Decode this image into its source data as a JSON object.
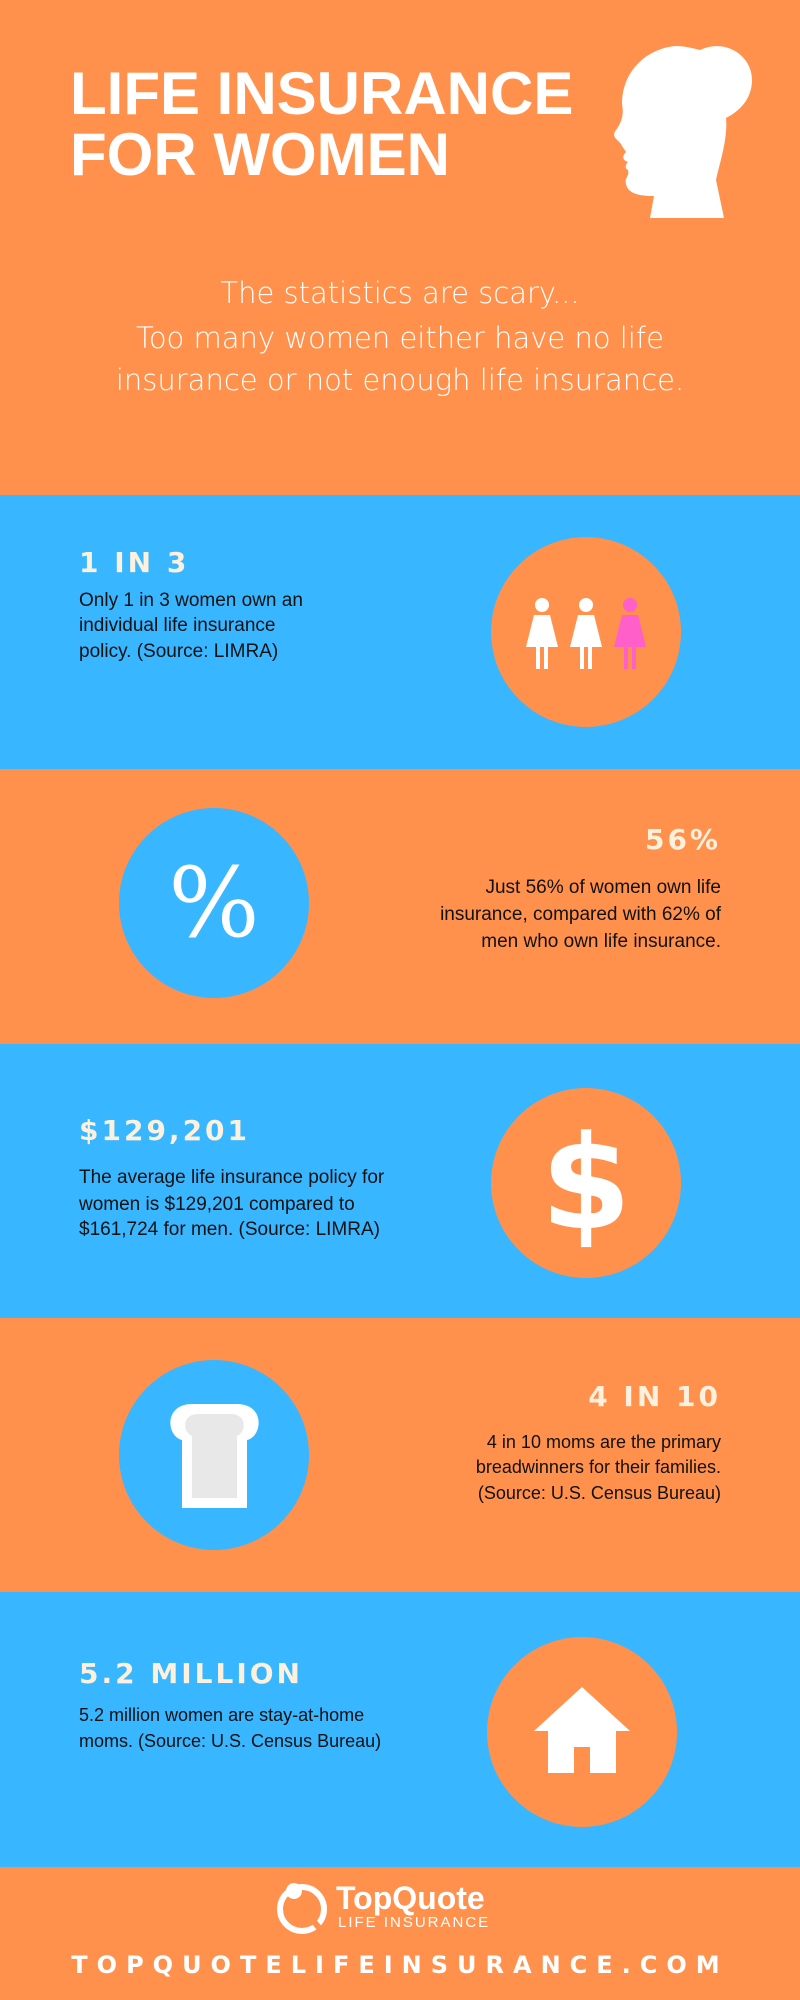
{
  "header": {
    "title": [
      "LIFE INSURANCE",
      "FOR WOMEN"
    ],
    "subtitle": [
      "The statistics are scary...",
      "Too many women either have no life",
      "insurance or not enough life insurance."
    ]
  },
  "sections": [
    {
      "stat": "1 IN 3",
      "text": [
        "Only 1 in 3 women own an",
        "individual life insurance",
        "policy. (Source: LIMRA)"
      ]
    },
    {
      "stat": "56%",
      "icon": "%",
      "text": [
        "Just 56% of women own life",
        "insurance, compared with 62% of",
        "men who own life insurance."
      ]
    },
    {
      "stat": "$129,201",
      "icon": "$",
      "text": [
        "The average life insurance policy for",
        "women is $129,201 compared to",
        "$161,724 for men. (Source: LIMRA)"
      ]
    },
    {
      "stat": "4 IN 10",
      "text": [
        "4 in 10 moms are the primary",
        "breadwinners for their families.",
        "(Source: U.S. Census Bureau)"
      ]
    },
    {
      "stat": "5.2 MILLION",
      "text": [
        "5.2 million women are stay-at-home",
        "moms. (Source: U.S. Census Bureau)"
      ]
    }
  ],
  "footer": {
    "logo_name": "TopQuote",
    "logo_tagline": "LIFE INSURANCE",
    "url": "TOPQUOTELIFEINSURANCE.COM"
  }
}
